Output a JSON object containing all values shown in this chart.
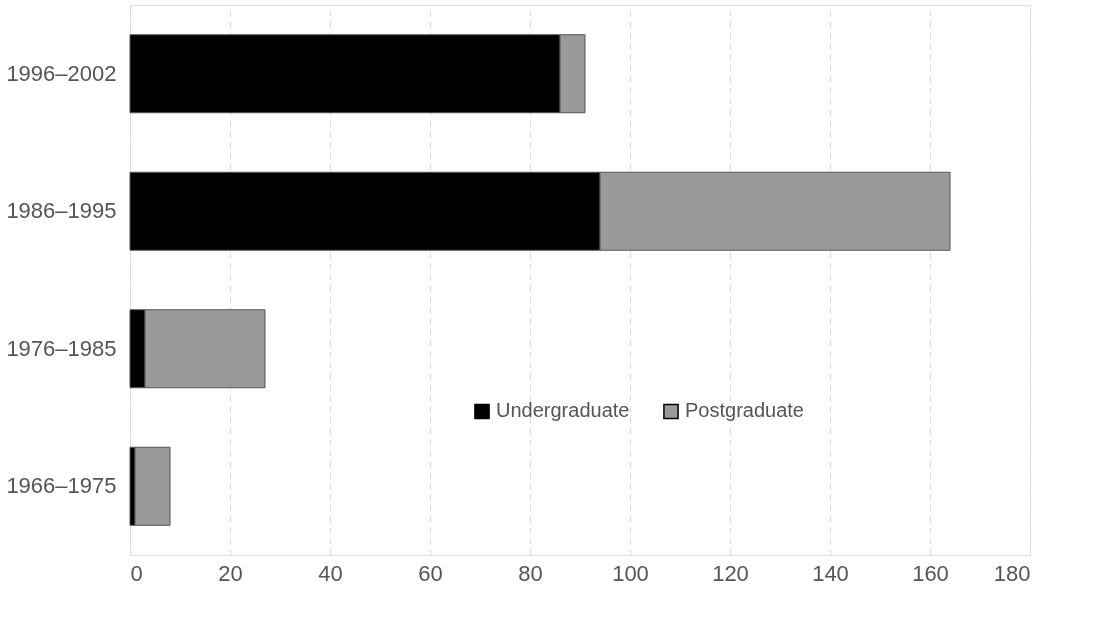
{
  "chart_data": {
    "type": "bar",
    "orientation": "horizontal",
    "stacked": true,
    "categories": [
      "1996–2002",
      "1986–1995",
      "1976–1985",
      "1966–1975"
    ],
    "series": [
      {
        "name": "Undergraduate",
        "color": "#000000",
        "values": [
          86,
          94,
          3,
          1
        ]
      },
      {
        "name": "Postgraduate",
        "color": "#9a9a9a",
        "values": [
          5,
          70,
          24,
          7
        ]
      }
    ],
    "xlim": [
      0,
      180
    ],
    "xticks": [
      0,
      20,
      40,
      60,
      80,
      100,
      120,
      140,
      160,
      180
    ],
    "grid": "x",
    "legend": "bottom"
  }
}
